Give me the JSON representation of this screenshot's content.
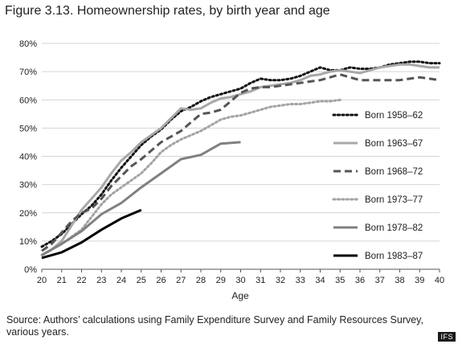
{
  "figure": {
    "title": "Figure 3.13. Homeownership rates, by birth year and age",
    "source": "Source: Authors’ calculations using Family Expenditure Survey and Family Resources Survey, various years.",
    "watermark": "IFS"
  },
  "chart_data": {
    "type": "line",
    "title": "Figure 3.13. Homeownership rates, by birth year and age",
    "xlabel": "Age",
    "ylabel": "",
    "xlim": [
      20,
      40
    ],
    "ylim": [
      0,
      80
    ],
    "x_ticks": [
      20,
      21,
      22,
      23,
      24,
      25,
      26,
      27,
      28,
      29,
      30,
      31,
      32,
      33,
      34,
      35,
      36,
      37,
      38,
      39,
      40
    ],
    "y_ticks": [
      0,
      10,
      20,
      30,
      40,
      50,
      60,
      70,
      80
    ],
    "y_tick_format": "percent",
    "grid": "horizontal",
    "legend_position": "right",
    "series": [
      {
        "name": "Born 1958–62",
        "color": "#111111",
        "dash": "dotted",
        "width": 3,
        "x": [
          20,
          20.5,
          21,
          21.5,
          22,
          22.5,
          23,
          23.5,
          24,
          24.5,
          25,
          25.5,
          26,
          26.5,
          27,
          27.5,
          28,
          28.5,
          29,
          29.5,
          30,
          30.5,
          31,
          31.5,
          32,
          32.5,
          33,
          33.5,
          34,
          34.5,
          35,
          35.5,
          36,
          36.5,
          37,
          37.5,
          38,
          38.5,
          39,
          39.5,
          40
        ],
        "values": [
          8,
          10,
          12.5,
          16,
          19.5,
          22.5,
          26.5,
          31.5,
          36,
          40,
          44,
          47,
          49.5,
          53,
          56,
          57.5,
          59.5,
          61,
          62,
          63,
          64,
          66,
          67.5,
          67,
          67,
          67.5,
          68.5,
          70,
          71.5,
          70.5,
          70.5,
          71.5,
          71,
          71,
          71.5,
          72.5,
          73,
          73.5,
          73.5,
          73,
          73
        ]
      },
      {
        "name": "Born 1963–67",
        "color": "#a8a8a8",
        "dash": "solid",
        "width": 3,
        "x": [
          20,
          20.5,
          21,
          21.5,
          22,
          22.5,
          23,
          23.5,
          24,
          24.5,
          25,
          25.5,
          26,
          26.5,
          27,
          27.5,
          28,
          28.5,
          29,
          29.5,
          30,
          30.5,
          31,
          31.5,
          32,
          32.5,
          33,
          33.5,
          34,
          34.5,
          35,
          35.5,
          36,
          36.5,
          37,
          37.5,
          38,
          38.5,
          39,
          39.5,
          40
        ],
        "values": [
          5,
          7,
          10,
          15.5,
          21,
          25,
          29,
          34,
          38.5,
          41.5,
          45,
          47.5,
          50,
          53.5,
          57,
          56.5,
          57,
          59,
          60.5,
          61,
          62,
          63,
          64.5,
          65,
          65.5,
          66,
          67,
          68.5,
          69,
          70,
          70.5,
          70,
          69.5,
          70.5,
          71.5,
          72,
          72.5,
          72.5,
          72,
          71.5,
          71.5
        ]
      },
      {
        "name": "Born 1968–72",
        "color": "#555555",
        "dash": "dashed",
        "width": 3,
        "x": [
          20,
          20.5,
          21,
          21.5,
          22,
          22.5,
          23,
          23.5,
          24,
          24.5,
          25,
          25.5,
          26,
          26.5,
          27,
          27.5,
          28,
          28.5,
          29,
          29.5,
          30,
          30.5,
          31,
          31.5,
          32,
          32.5,
          33,
          33.5,
          34,
          34.5,
          35,
          35.5,
          36,
          36.5,
          37,
          37.5,
          38,
          38.5,
          39,
          39.5,
          40
        ],
        "values": [
          6.5,
          9,
          13,
          17,
          20,
          21.5,
          25,
          29.5,
          33,
          36.5,
          39,
          42,
          45,
          47,
          49,
          52,
          55,
          55.5,
          56.5,
          59.5,
          62.5,
          64,
          64.5,
          64.5,
          65,
          65.5,
          66,
          66.5,
          67,
          68,
          69,
          68,
          67,
          67,
          67,
          67,
          67,
          67.5,
          68,
          67.5,
          67
        ]
      },
      {
        "name": "Born 1973–77",
        "color": "#a3a3a3",
        "dash": "dotted",
        "width": 3,
        "x": [
          20,
          20.5,
          21,
          21.5,
          22,
          22.5,
          23,
          23.5,
          24,
          24.5,
          25,
          25.5,
          26,
          26.5,
          27,
          27.5,
          28,
          28.5,
          29,
          29.5,
          30,
          30.5,
          31,
          31.5,
          32,
          32.5,
          33,
          33.5,
          34,
          34.5,
          35
        ],
        "values": [
          5,
          7,
          9,
          11.5,
          14,
          18.5,
          23,
          26.5,
          29,
          31.5,
          34,
          37.5,
          41.5,
          44,
          46,
          47.5,
          49,
          51,
          53,
          54,
          54.5,
          55.5,
          56.5,
          57.5,
          58,
          58.5,
          58.5,
          59,
          59.5,
          59.5,
          60
        ]
      },
      {
        "name": "Born 1978–82",
        "color": "#808080",
        "dash": "solid",
        "width": 3,
        "x": [
          20,
          21,
          22,
          23,
          24,
          25,
          26,
          27,
          28,
          29,
          30
        ],
        "values": [
          5,
          9,
          13.5,
          19.5,
          23.5,
          29,
          34,
          39,
          40.5,
          44.5,
          45
        ]
      },
      {
        "name": "Born 1983–87",
        "color": "#000000",
        "dash": "solid",
        "width": 3,
        "x": [
          20,
          21,
          22,
          23,
          24,
          25
        ],
        "values": [
          4,
          6,
          9.5,
          14,
          18,
          21
        ]
      }
    ]
  }
}
